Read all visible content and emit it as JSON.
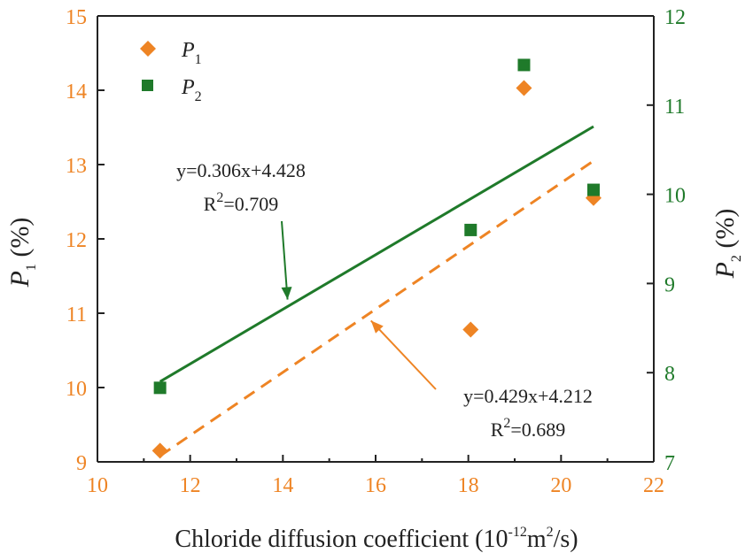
{
  "chart_data": {
    "type": "scatter",
    "x_axis": {
      "label_text": "Chloride diffusion coefficient (10",
      "label_exp1": "-12",
      "label_mid": "m",
      "label_exp2": "2",
      "label_end": "/s)",
      "range": [
        10,
        22
      ],
      "ticks": [
        "10",
        "12",
        "14",
        "16",
        "18",
        "20",
        "22"
      ]
    },
    "y_left": {
      "symbol": "P",
      "sub": "1",
      "unit": " (%)",
      "range": [
        9,
        15
      ],
      "ticks": [
        "9",
        "10",
        "11",
        "12",
        "13",
        "14",
        "15"
      ],
      "color": "#ee8424"
    },
    "y_right": {
      "symbol": "P",
      "sub": "2",
      "unit": " (%)",
      "range": [
        7,
        12
      ],
      "ticks": [
        "7",
        "8",
        "9",
        "10",
        "11",
        "12"
      ],
      "color": "#1f7a2a"
    },
    "series": [
      {
        "name": "P1",
        "label_symbol": "P",
        "label_sub": "1",
        "axis": "left",
        "marker": "diamond",
        "color": "#ee8424",
        "x": [
          11.35,
          18.05,
          19.2,
          20.7
        ],
        "y": [
          9.15,
          10.78,
          14.03,
          12.55
        ]
      },
      {
        "name": "P2",
        "label_symbol": "P",
        "label_sub": "2",
        "axis": "right",
        "marker": "square",
        "color": "#1f7a2a",
        "x": [
          11.35,
          18.05,
          19.2,
          20.7
        ],
        "y": [
          7.83,
          9.6,
          11.45,
          10.05
        ]
      }
    ],
    "fits": [
      {
        "series": "P2",
        "axis": "right",
        "style": "solid",
        "color": "#1f7a2a",
        "x_range": [
          11.35,
          20.7
        ],
        "y_start": 7.9,
        "y_end": 10.76,
        "equation": "y=0.306x+4.428",
        "r2_prefix": "R",
        "r2_exp": "2",
        "r2_value": "=0.709",
        "arrow_target": [
          14.1,
          8.82
        ]
      },
      {
        "series": "P1",
        "axis": "left",
        "style": "dashed",
        "color": "#ee8424",
        "x_range": [
          11.35,
          20.7
        ],
        "y_start": 9.08,
        "y_end": 13.05,
        "equation": "y=0.429x+4.212",
        "r2_prefix": "R",
        "r2_exp": "2",
        "r2_value": "=0.689",
        "arrow_target": [
          15.9,
          10.9
        ]
      }
    ],
    "legend": {
      "position": "top-left"
    }
  }
}
